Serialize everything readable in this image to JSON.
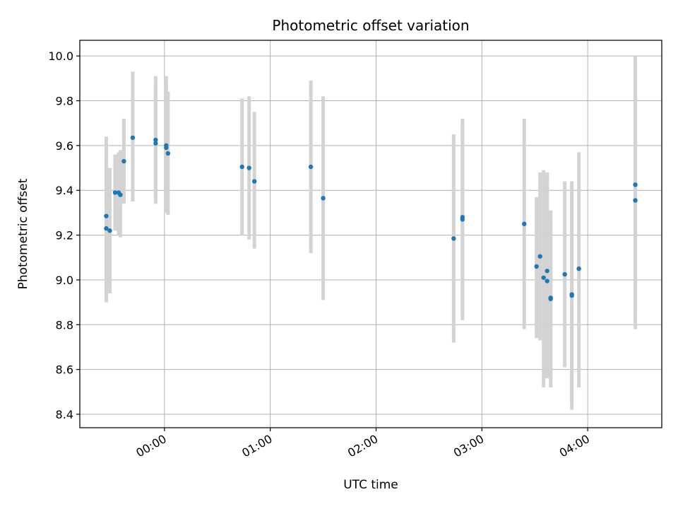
{
  "chart_data": {
    "type": "scatter",
    "title": "Photometric offset variation",
    "xlabel": "UTC time",
    "ylabel": "Photometric offset",
    "x_tick_labels": [
      "00:00",
      "01:00",
      "02:00",
      "03:00",
      "04:00"
    ],
    "y_tick_labels": [
      "8.4",
      "8.6",
      "8.8",
      "9.0",
      "9.2",
      "9.4",
      "9.6",
      "9.8",
      "10.0"
    ],
    "xlim": [
      "23:12",
      "04:42"
    ],
    "ylim": [
      8.34,
      10.07
    ],
    "grid": true,
    "colors": {
      "marker": "#1f77b4",
      "errorbar": "#d3d3d3",
      "grid": "#b0b0b0",
      "axes": "#000000"
    },
    "points": [
      {
        "x": "23:27",
        "y": 9.23,
        "ymin": 8.9,
        "ymax": 9.64
      },
      {
        "x": "23:27",
        "y": 9.285,
        "ymin": 8.93,
        "ymax": 9.56
      },
      {
        "x": "23:29",
        "y": 9.22,
        "ymin": 8.94,
        "ymax": 9.5
      },
      {
        "x": "23:32",
        "y": 9.39,
        "ymin": 9.22,
        "ymax": 9.56
      },
      {
        "x": "23:34",
        "y": 9.39,
        "ymin": 9.2,
        "ymax": 9.57
      },
      {
        "x": "23:35",
        "y": 9.38,
        "ymin": 9.19,
        "ymax": 9.58
      },
      {
        "x": "23:37",
        "y": 9.53,
        "ymin": 9.34,
        "ymax": 9.72
      },
      {
        "x": "23:42",
        "y": 9.635,
        "ymin": 9.35,
        "ymax": 9.93
      },
      {
        "x": "23:55",
        "y": 9.61,
        "ymin": 9.34,
        "ymax": 9.91
      },
      {
        "x": "23:55",
        "y": 9.625,
        "ymin": 9.36,
        "ymax": 9.88
      },
      {
        "x": "00:01",
        "y": 9.6,
        "ymin": 9.3,
        "ymax": 9.91
      },
      {
        "x": "00:01",
        "y": 9.59,
        "ymin": 9.3,
        "ymax": 9.88
      },
      {
        "x": "00:02",
        "y": 9.565,
        "ymin": 9.29,
        "ymax": 9.84
      },
      {
        "x": "00:44",
        "y": 9.505,
        "ymin": 9.2,
        "ymax": 9.81
      },
      {
        "x": "00:48",
        "y": 9.5,
        "ymin": 9.18,
        "ymax": 9.82
      },
      {
        "x": "00:51",
        "y": 9.44,
        "ymin": 9.14,
        "ymax": 9.75
      },
      {
        "x": "01:23",
        "y": 9.505,
        "ymin": 9.12,
        "ymax": 9.89
      },
      {
        "x": "01:30",
        "y": 9.365,
        "ymin": 8.91,
        "ymax": 9.82
      },
      {
        "x": "02:44",
        "y": 9.185,
        "ymin": 8.72,
        "ymax": 9.65
      },
      {
        "x": "02:49",
        "y": 9.27,
        "ymin": 8.82,
        "ymax": 9.72
      },
      {
        "x": "02:49",
        "y": 9.28,
        "ymin": 8.84,
        "ymax": 9.7
      },
      {
        "x": "03:24",
        "y": 9.25,
        "ymin": 8.78,
        "ymax": 9.72
      },
      {
        "x": "03:31",
        "y": 9.06,
        "ymin": 8.74,
        "ymax": 9.37
      },
      {
        "x": "03:33",
        "y": 9.105,
        "ymin": 8.73,
        "ymax": 9.48
      },
      {
        "x": "03:35",
        "y": 9.01,
        "ymin": 8.52,
        "ymax": 9.49
      },
      {
        "x": "03:37",
        "y": 9.04,
        "ymin": 8.58,
        "ymax": 9.48
      },
      {
        "x": "03:37",
        "y": 8.995,
        "ymin": 8.56,
        "ymax": 9.46
      },
      {
        "x": "03:39",
        "y": 8.915,
        "ymin": 8.52,
        "ymax": 9.31
      },
      {
        "x": "03:39",
        "y": 8.92,
        "ymin": 8.56,
        "ymax": 9.27
      },
      {
        "x": "03:47",
        "y": 9.025,
        "ymin": 8.61,
        "ymax": 9.44
      },
      {
        "x": "03:51",
        "y": 8.935,
        "ymin": 8.42,
        "ymax": 9.44
      },
      {
        "x": "03:51",
        "y": 8.93,
        "ymin": 8.44,
        "ymax": 9.42
      },
      {
        "x": "03:55",
        "y": 9.05,
        "ymin": 8.52,
        "ymax": 9.57
      },
      {
        "x": "04:27",
        "y": 9.425,
        "ymin": 8.85,
        "ymax": 10.0
      },
      {
        "x": "04:27",
        "y": 9.355,
        "ymin": 8.78,
        "ymax": 9.97
      }
    ]
  }
}
